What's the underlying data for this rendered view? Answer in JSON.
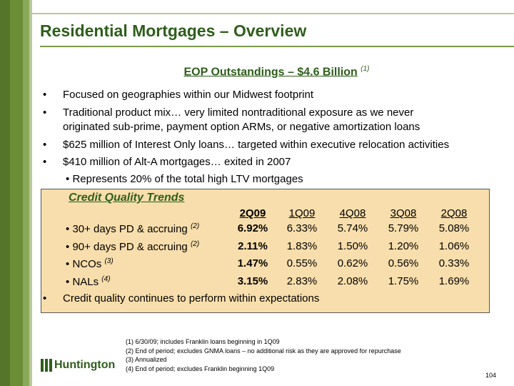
{
  "title": "Residential Mortgages – Overview",
  "subtitle": {
    "text": "EOP Outstandings – $4.6 Billion",
    "note": "(1)"
  },
  "bullets": [
    "Focused on geographies within our Midwest footprint",
    "Traditional product mix… very limited nontraditional exposure as we never",
    "originated sub-prime, payment option ARMs, or negative amortization loans",
    "$625 million of Interest Only loans… targeted within executive relocation activities",
    "$410 million of Alt-A mortgages… exited in 2007"
  ],
  "sub_bullet": "Represents 20% of the total high LTV mortgages",
  "bullet_char": "•",
  "credit_quality": {
    "title": "Credit Quality Trends",
    "periods": [
      "2Q09",
      "1Q09",
      "4Q08",
      "3Q08",
      "2Q08"
    ],
    "rows": [
      {
        "label": "30+ days PD & accruing",
        "note": "(2)",
        "values": [
          "6.92%",
          "6.33%",
          "5.74%",
          "5.79%",
          "5.08%"
        ]
      },
      {
        "label": "90+ days PD & accruing",
        "note": "(2)",
        "values": [
          "2.11%",
          "1.83%",
          "1.50%",
          "1.20%",
          "1.06%"
        ]
      },
      {
        "label": "NCOs",
        "note": "(3)",
        "values": [
          "1.47%",
          "0.55%",
          "0.62%",
          "0.56%",
          "0.33%"
        ]
      },
      {
        "label": "NALs",
        "note": "(4)",
        "values": [
          "3.15%",
          "2.83%",
          "2.08%",
          "1.75%",
          "1.69%"
        ]
      }
    ],
    "closing_bullet": "Credit quality continues to perform within expectations"
  },
  "footnotes": [
    "(1)  6/30/09; includes Franklin loans beginning in 1Q09",
    "(2)  End of period; excludes GNMA loans – no additional risk as they are approved for repurchase",
    "(3) Annualized",
    "(4) End of period; excludes Franklin beginning 1Q09"
  ],
  "logo": {
    "text": "Huntington",
    "icon": "huntington-logo-icon"
  },
  "page_number": "104",
  "colors": {
    "brand_green": "#2f5e1c",
    "box_fill": "#f8deac",
    "stripe_dark": "#55752a"
  }
}
